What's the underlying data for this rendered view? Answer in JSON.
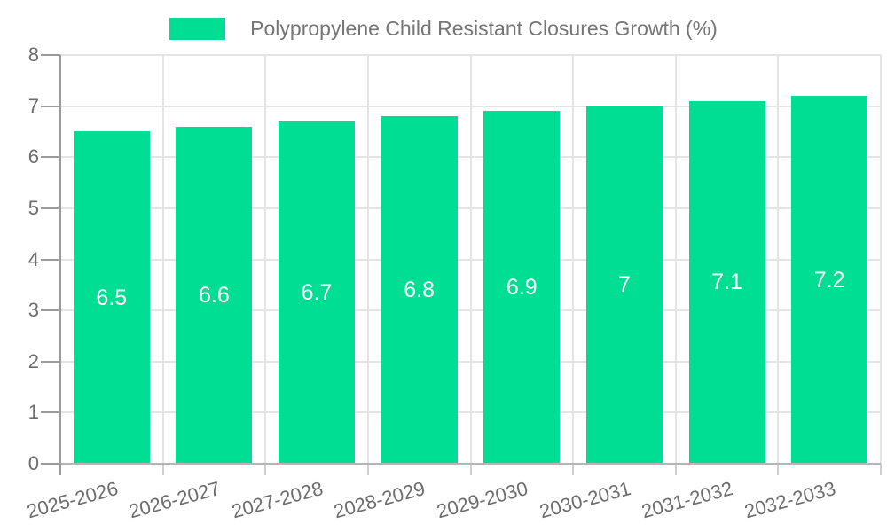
{
  "chart_data": {
    "type": "bar",
    "title": "Polypropylene Child Resistant Closures Growth (%)",
    "categories": [
      "2025-2026",
      "2026-2027",
      "2027-2028",
      "2028-2029",
      "2029-2030",
      "2030-2031",
      "2031-2032",
      "2032-2033"
    ],
    "values": [
      6.5,
      6.6,
      6.7,
      6.8,
      6.9,
      7,
      7.1,
      7.2
    ],
    "value_labels": [
      "6.5",
      "6.6",
      "6.7",
      "6.8",
      "6.9",
      "7",
      "7.1",
      "7.2"
    ],
    "xlabel": "",
    "ylabel": "",
    "ylim": [
      0,
      8
    ],
    "yticks": [
      0,
      1,
      2,
      3,
      4,
      5,
      6,
      7,
      8
    ],
    "ytick_labels": [
      "0",
      "1",
      "2",
      "3",
      "4",
      "5",
      "6",
      "7",
      "8"
    ],
    "grid": true,
    "legend_position": "top",
    "x_label_rotation_deg": -15,
    "colors": {
      "bar": "#00DE94",
      "bar_value_text": "#FFFFFF",
      "axis_text": "#6D6D6D",
      "legend_text": "#757575",
      "grid_line": "#E4E4E4",
      "axis_line_y": "#9B9B9B",
      "axis_line_x": "#B5B5B5",
      "tick_line_x": "#CFCFCF",
      "background": "#FFFFFF"
    }
  }
}
